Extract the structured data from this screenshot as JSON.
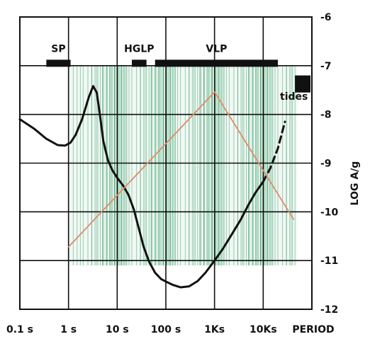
{
  "chart_data": {
    "type": "line",
    "title": "",
    "xlabel": "PERIOD",
    "ylabel": "LOG A/g",
    "x_scale": "log",
    "x_unit": "s",
    "xlim": [
      0.1,
      100000
    ],
    "ylim": [
      -12,
      -6
    ],
    "x_ticks": [
      {
        "value": 0.1,
        "label": "0.1 s"
      },
      {
        "value": 1,
        "label": "1 s"
      },
      {
        "value": 10,
        "label": "10 s"
      },
      {
        "value": 100,
        "label": "100 s"
      },
      {
        "value": 1000,
        "label": "1Ks"
      },
      {
        "value": 10000,
        "label": "10Ks"
      }
    ],
    "y_ticks": [
      {
        "value": -6,
        "label": "-6"
      },
      {
        "value": -7,
        "label": "-7"
      },
      {
        "value": -8,
        "label": "-8"
      },
      {
        "value": -9,
        "label": "-9"
      },
      {
        "value": -10,
        "label": "-10"
      },
      {
        "value": -11,
        "label": "-11"
      },
      {
        "value": -12,
        "label": "-12"
      }
    ],
    "grid": true,
    "shaded_period_range": {
      "x": [
        1,
        50000
      ],
      "y": [
        -11.1,
        -7
      ],
      "color": "#3aa06a"
    },
    "series": [
      {
        "style": "solid",
        "color": "#111111",
        "x": [
          0.1,
          0.2,
          0.35,
          0.6,
          0.85,
          1.1,
          1.4,
          1.9,
          2.6,
          3.2,
          3.8,
          4.4,
          5.2,
          6.5,
          8,
          10,
          13,
          17,
          22,
          28,
          35,
          45,
          60,
          80,
          100,
          140,
          200,
          300,
          450,
          650,
          1000,
          1500,
          2300,
          3500,
          5000,
          7000,
          10000
        ],
        "y": [
          -8.1,
          -8.3,
          -8.5,
          -8.63,
          -8.64,
          -8.58,
          -8.42,
          -8.1,
          -7.65,
          -7.42,
          -7.55,
          -8.0,
          -8.55,
          -8.95,
          -9.15,
          -9.3,
          -9.45,
          -9.65,
          -9.95,
          -10.35,
          -10.72,
          -11.02,
          -11.25,
          -11.38,
          -11.43,
          -11.5,
          -11.55,
          -11.53,
          -11.42,
          -11.25,
          -11.0,
          -10.75,
          -10.45,
          -10.15,
          -9.85,
          -9.6,
          -9.38
        ]
      },
      {
        "style": "dashed",
        "color": "#111111",
        "x": [
          10000,
          14000,
          20000,
          28000
        ],
        "y": [
          -9.38,
          -9.1,
          -8.7,
          -8.15
        ]
      },
      {
        "style": "solid",
        "color": "#e08a6a",
        "x": [
          1,
          1000,
          42000
        ],
        "y": [
          -10.72,
          -7.54,
          -10.15
        ]
      }
    ],
    "bands": [
      {
        "label": "SP",
        "x": [
          0.35,
          1.1
        ],
        "y": -6.95
      },
      {
        "label": "HGLP",
        "x": [
          20,
          40
        ],
        "y": -6.95
      },
      {
        "label": "VLP",
        "x": [
          60,
          20000
        ],
        "y": -6.95
      }
    ],
    "annotations": [
      {
        "text": "tides",
        "x": 35000,
        "y": -7.7,
        "marker_x": [
          30000,
          100000
        ],
        "marker_y": [
          -7.7,
          -7.3
        ]
      }
    ]
  }
}
